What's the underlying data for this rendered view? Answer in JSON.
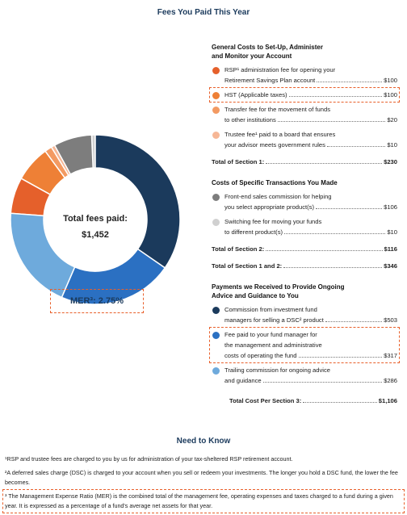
{
  "title": "Fees You Paid This Year",
  "donut": {
    "label": "Total fees paid:",
    "total": "$1,452",
    "mer": "MER³: 2.75%"
  },
  "sections": [
    {
      "heading": [
        "General Costs to Set-Up, Administer",
        "and Monitor your Account"
      ],
      "items": [
        {
          "color": "#e5602b",
          "lines": [
            "RSP¹ administration fee for opening your",
            "Retirement Savings Plan account"
          ],
          "value": 100,
          "value_label": "$100"
        },
        {
          "color": "#ee8036",
          "lines": [
            "HST (Applicable taxes)"
          ],
          "value": 100,
          "value_label": "$100"
        },
        {
          "color": "#f39a62",
          "lines": [
            "Transfer fee for the movement of funds",
            "to other institutions"
          ],
          "value": 20,
          "value_label": "$20"
        },
        {
          "color": "#f6b796",
          "lines": [
            "Trustee fee¹ paid to a board that ensures",
            "your advisor meets government rules"
          ],
          "value": 10,
          "value_label": "$10"
        }
      ],
      "totals": [
        {
          "label": "Total of Section 1:",
          "value_label": "$230"
        }
      ]
    },
    {
      "heading": [
        "Costs of Specific Transactions You Made"
      ],
      "items": [
        {
          "color": "#7d7d7d",
          "lines": [
            "Front-end sales commission for helping",
            "you select appropriate product(s)"
          ],
          "value": 106,
          "value_label": "$106"
        },
        {
          "color": "#d0d0d0",
          "lines": [
            "Switching fee for moving your funds",
            "to different product(s)"
          ],
          "value": 10,
          "value_label": "$10"
        }
      ],
      "totals": [
        {
          "label": "Total of Section 2:",
          "value_label": "$116"
        },
        {
          "label": "Total of Section 1 and 2:",
          "value_label": "$346"
        }
      ]
    },
    {
      "heading": [
        "Payments we Received to Provide Ongoing",
        "Advice and Guidance to You"
      ],
      "items": [
        {
          "color": "#1b3a5c",
          "lines": [
            "Commission from investment fund",
            "managers for selling a DSC² product"
          ],
          "value": 503,
          "value_label": "$503"
        },
        {
          "color": "#2b70c2",
          "lines": [
            "Fee paid to your fund manager for",
            "the management and administrative",
            "costs of operating the fund"
          ],
          "value": 317,
          "value_label": "$317"
        },
        {
          "color": "#6eaadc",
          "lines": [
            "Trailing commission for ongoing advice",
            "and guidance"
          ],
          "value": 286,
          "value_label": "$286"
        }
      ],
      "totals": [
        {
          "label": "Total Cost Per Section 3:",
          "value_label": "$1,106"
        }
      ]
    }
  ],
  "need_to_know": {
    "heading": "Need to Know",
    "notes": [
      "¹RSP and trustee fees are charged to you by us for administration of your tax-sheltered RSP retirement account.",
      "²A deferred sales charge (DSC) is charged to your account when you sell or redeem your investments. The longer you hold a DSC fund, the lower the fee becomes.",
      "³ The Management Expense Ratio (MER) is the combined total of the management fee, operating expenses and taxes charged to a fund during a given year. It is expressed as a percentage of a fund's average net assets for that year."
    ]
  }
}
